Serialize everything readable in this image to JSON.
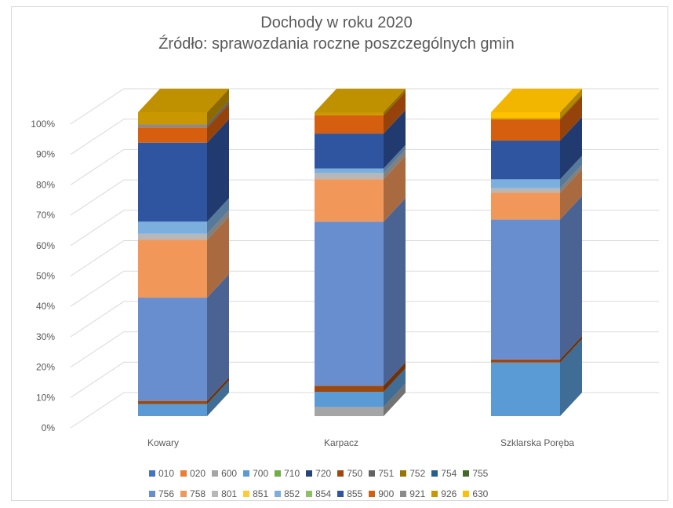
{
  "chart_data": {
    "type": "bar",
    "stacked": "percent",
    "three_d": true,
    "title": "Dochody w roku 2020",
    "subtitle": "Źródło: sprawozdania roczne poszczególnych gmin",
    "categories": [
      "Kowary",
      "Karpacz",
      "Szklarska Poręba"
    ],
    "y_ticks": [
      "0%",
      "10%",
      "20%",
      "30%",
      "40%",
      "50%",
      "60%",
      "70%",
      "80%",
      "90%",
      "100%"
    ],
    "ylim": [
      0,
      100
    ],
    "grid": true,
    "legend_position": "bottom",
    "series": [
      {
        "name": "010",
        "color": "#4472c4",
        "values": [
          0,
          0,
          0
        ]
      },
      {
        "name": "020",
        "color": "#ed7d31",
        "values": [
          0,
          0,
          0
        ]
      },
      {
        "name": "600",
        "color": "#a5a5a5",
        "values": [
          0,
          3,
          0
        ]
      },
      {
        "name": "700",
        "color": "#5b9bd5",
        "values": [
          4,
          5,
          18
        ]
      },
      {
        "name": "710",
        "color": "#70ad47",
        "values": [
          0,
          0,
          0
        ]
      },
      {
        "name": "720",
        "color": "#264478",
        "values": [
          0,
          0,
          0
        ]
      },
      {
        "name": "750",
        "color": "#9e480e",
        "values": [
          1,
          2,
          1
        ]
      },
      {
        "name": "751",
        "color": "#636363",
        "values": [
          0,
          0,
          0
        ]
      },
      {
        "name": "752",
        "color": "#997300",
        "values": [
          0,
          0,
          0
        ]
      },
      {
        "name": "754",
        "color": "#255e91",
        "values": [
          0,
          0,
          0
        ]
      },
      {
        "name": "755",
        "color": "#43682b",
        "values": [
          0,
          0,
          0
        ]
      },
      {
        "name": "756",
        "color": "#698ed0",
        "values": [
          34,
          54,
          47
        ]
      },
      {
        "name": "758",
        "color": "#f1975a",
        "values": [
          19,
          14,
          9
        ]
      },
      {
        "name": "801",
        "color": "#b7b7b7",
        "values": [
          2,
          2,
          1.5
        ]
      },
      {
        "name": "851",
        "color": "#ffcd33",
        "values": [
          0,
          0,
          0
        ]
      },
      {
        "name": "852",
        "color": "#7cafdd",
        "values": [
          4,
          1.5,
          3
        ]
      },
      {
        "name": "854",
        "color": "#8cc168",
        "values": [
          0,
          0,
          0
        ]
      },
      {
        "name": "855",
        "color": "#2f55a0",
        "values": [
          26,
          11.5,
          13
        ]
      },
      {
        "name": "900",
        "color": "#d55f0f",
        "values": [
          5,
          6,
          7
        ]
      },
      {
        "name": "921",
        "color": "#8b8b8b",
        "values": [
          1,
          0,
          0
        ]
      },
      {
        "name": "926",
        "color": "#c99800",
        "values": [
          4,
          1,
          0.5
        ]
      },
      {
        "name": "630",
        "color": "#ffc000",
        "values": [
          0,
          0,
          2
        ]
      }
    ]
  }
}
